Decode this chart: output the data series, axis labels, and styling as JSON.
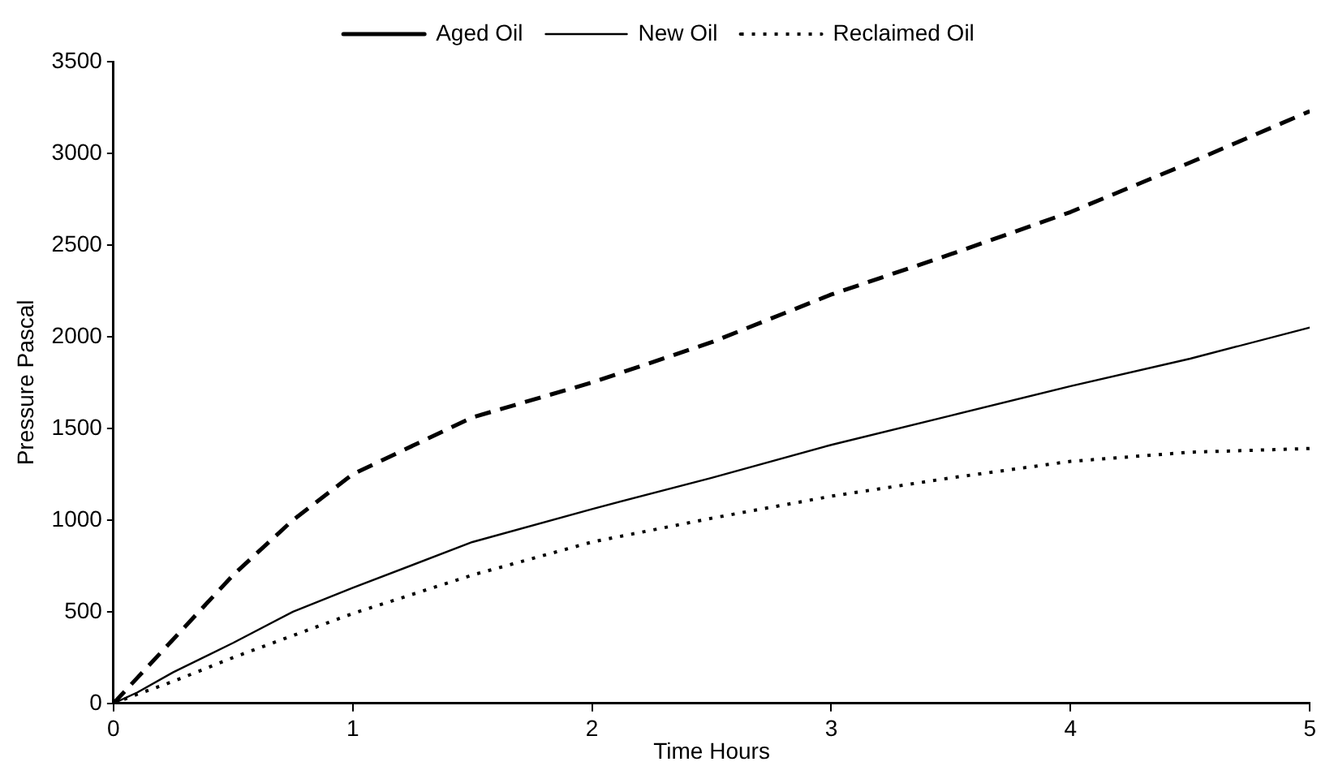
{
  "chart_data": {
    "type": "line",
    "xlabel": "Time Hours",
    "ylabel": "Pressure Pascal",
    "xlim": [
      0,
      5
    ],
    "xticks": [
      0,
      1,
      2,
      3,
      4,
      5
    ],
    "ylim": [
      0,
      3500
    ],
    "yticks": [
      0,
      500,
      1000,
      1500,
      2000,
      2500,
      3000,
      3500
    ],
    "grid": false,
    "legend": "top",
    "marker": "none",
    "x": [
      0,
      0.1,
      0.25,
      0.5,
      0.75,
      1,
      1.5,
      2,
      2.5,
      3,
      3.5,
      4,
      4.5,
      5
    ],
    "series": [
      {
        "name": "Aged Oil",
        "color": "#000000",
        "line_style": "dashed",
        "values": [
          0,
          140,
          350,
          700,
          1000,
          1250,
          1560,
          1750,
          1970,
          2230,
          2450,
          2680,
          2950,
          3230
        ]
      },
      {
        "name": "New Oil",
        "color": "#000000",
        "line_style": "solid",
        "values": [
          0,
          60,
          170,
          330,
          500,
          630,
          880,
          1060,
          1230,
          1410,
          1570,
          1730,
          1880,
          2050
        ]
      },
      {
        "name": "Reclaimed Oil",
        "color": "#000000",
        "line_style": "dotted",
        "values": [
          0,
          50,
          120,
          250,
          370,
          490,
          700,
          880,
          1010,
          1130,
          1230,
          1320,
          1370,
          1390
        ]
      }
    ]
  }
}
